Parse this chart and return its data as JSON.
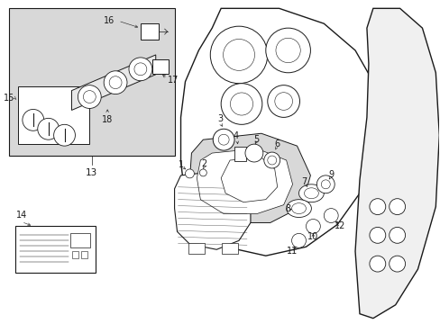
{
  "bg": "#ffffff",
  "lc": "#1a1a1a",
  "shade": "#d8d8d8",
  "fig_w": 4.89,
  "fig_h": 3.6,
  "dpi": 100
}
